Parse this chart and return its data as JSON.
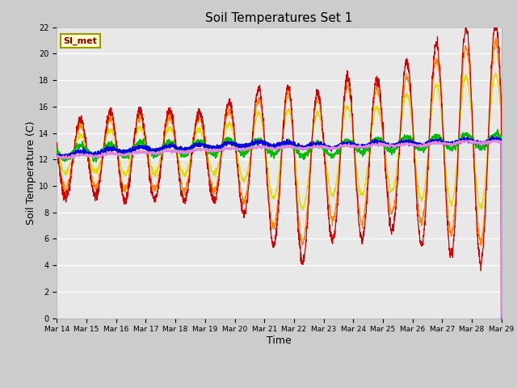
{
  "title": "Soil Temperatures Set 1",
  "xlabel": "Time",
  "ylabel": "Soil Temperature (C)",
  "ylim": [
    0,
    22
  ],
  "yticks": [
    0,
    2,
    4,
    6,
    8,
    10,
    12,
    14,
    16,
    18,
    20,
    22
  ],
  "series_colors": {
    "TC1_2Cm": "#cc0000",
    "TC1_4Cm": "#ff8800",
    "TC1_8Cm": "#dddd00",
    "TC1_16Cm": "#00bb00",
    "TC1_32Cm": "#0000dd",
    "TC1_50Cm": "#dd88dd"
  },
  "annotation_text": "SI_met",
  "annotation_bbox_facecolor": "#ffffcc",
  "annotation_bbox_edgecolor": "#999900",
  "fig_facecolor": "#cccccc",
  "plot_bg_color": "#e8e8e8",
  "n_days": 15,
  "start_day": 14,
  "ppd": 144,
  "seed": 7
}
